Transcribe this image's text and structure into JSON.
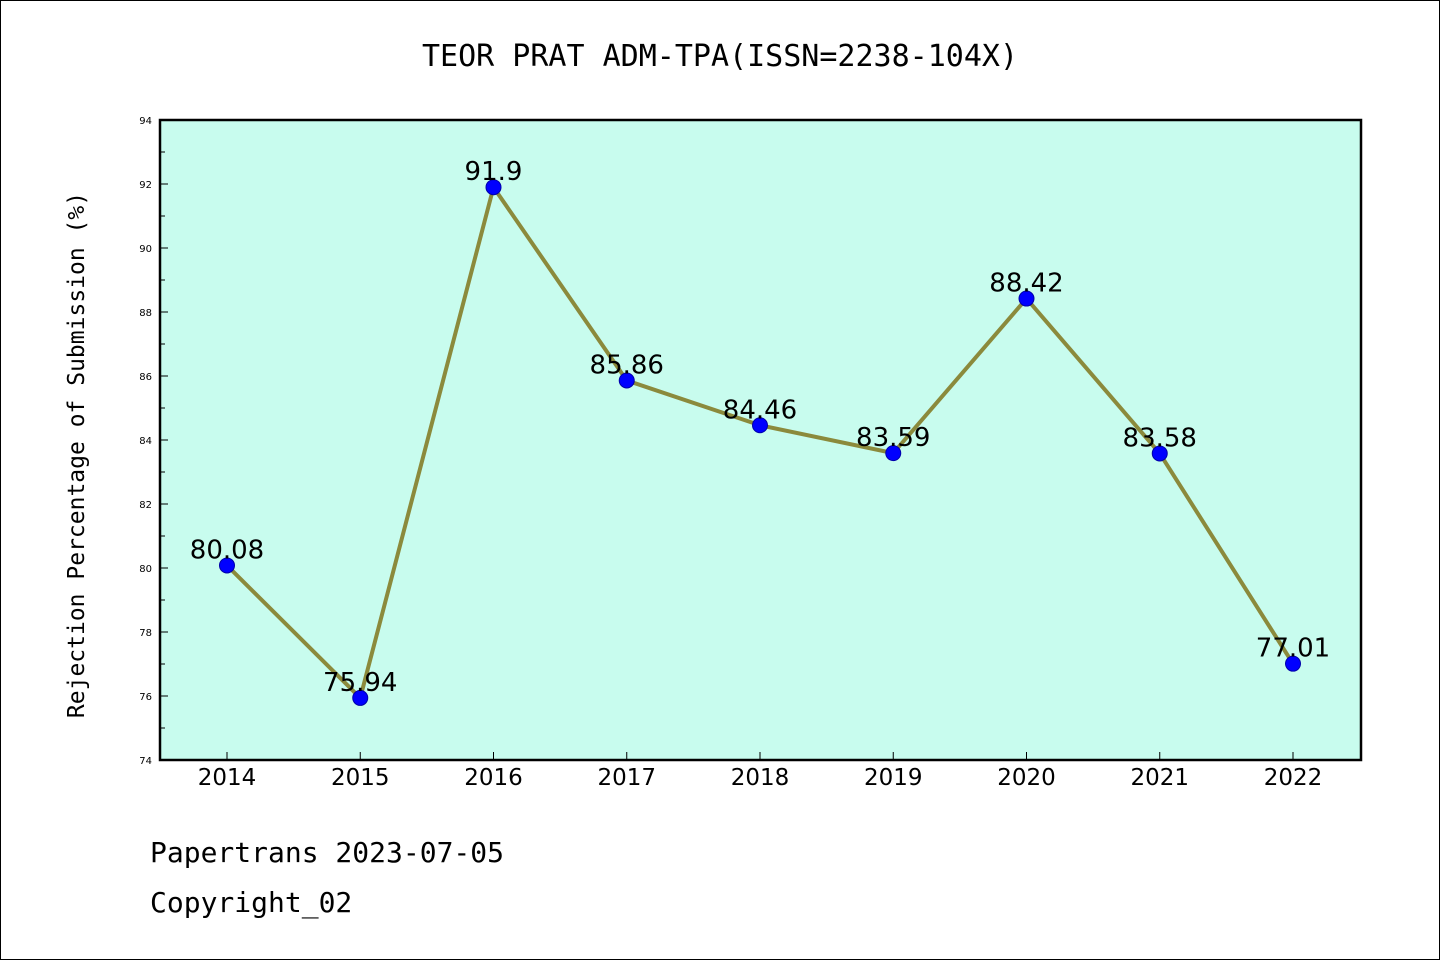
{
  "chart_data": {
    "type": "line",
    "title": "TEOR PRAT ADM-TPA(ISSN=2238-104X)",
    "xlabel": "",
    "ylabel": "Rejection Percentage of Submission (%)",
    "ylim": [
      74,
      94
    ],
    "yticks": [
      74,
      76,
      78,
      80,
      82,
      84,
      86,
      88,
      90,
      92,
      94
    ],
    "grid": false,
    "categories": [
      "2014",
      "2015",
      "2016",
      "2017",
      "2018",
      "2019",
      "2020",
      "2021",
      "2022"
    ],
    "series": [
      {
        "name": "Rejection Percentage",
        "values": [
          80.08,
          75.94,
          91.9,
          85.86,
          84.46,
          83.59,
          88.42,
          83.58,
          77.01
        ],
        "labels": [
          "80.08",
          "75.94",
          "91.9",
          "85.86",
          "84.46",
          "83.59",
          "88.42",
          "83.58",
          "77.01"
        ]
      }
    ],
    "colors": {
      "plot_background": "#c8fcee",
      "line": "#8b8a3c",
      "marker": "#0000ff"
    }
  },
  "footer": {
    "line1": "Papertrans 2023-07-05",
    "line2": "Copyright_02"
  }
}
